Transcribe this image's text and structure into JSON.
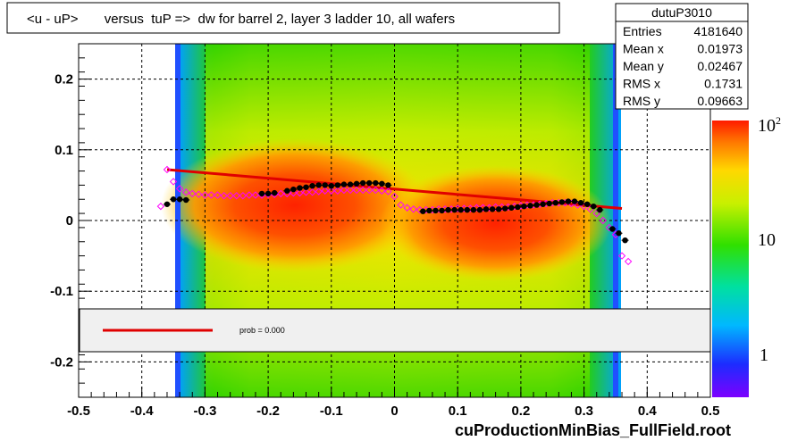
{
  "chart_data": {
    "type": "heatmap",
    "title": "<u - uP>       versus  tuP =>  dw for barrel 2, layer 3 ladder 10, all wafers",
    "xlabel": "cuProductionMinBias_FullField.root",
    "ylabel": "",
    "xlim": [
      -0.5,
      0.5
    ],
    "ylim": [
      -0.25,
      0.25
    ],
    "x_ticks": [
      "-0.5",
      "-0.4",
      "-0.3",
      "-0.2",
      "-0.1",
      "0",
      "0.1",
      "0.2",
      "0.3",
      "0.4",
      "0.5"
    ],
    "y_ticks": [
      "-0.2",
      "-0.1",
      "0",
      "0.1",
      "0.2"
    ],
    "grid": true,
    "z_scale": "log",
    "z_ticks": [
      "1",
      "10",
      "10^2"
    ],
    "colors": {
      "fit_line": "#e00000",
      "profile_points": "#000000",
      "profile_alt": "#ff00ff",
      "legend_box_bg": "#f0f0f0"
    },
    "stats": {
      "name": "dutuP3010",
      "rows": [
        {
          "label": "Entries",
          "value": "4181640"
        },
        {
          "label": "Mean x",
          "value": "0.01973"
        },
        {
          "label": "Mean y",
          "value": "0.02467"
        },
        {
          "label": "RMS x",
          "value": "0.1731"
        },
        {
          "label": "RMS y",
          "value": "0.09663"
        }
      ]
    },
    "legend": {
      "text": "prob = 0.000"
    },
    "fit_line": {
      "x": [
        -0.36,
        0.36
      ],
      "y": [
        0.072,
        0.017
      ]
    },
    "profile_black": {
      "x": [
        -0.36,
        -0.35,
        -0.34,
        -0.33,
        -0.21,
        -0.2,
        -0.19,
        -0.17,
        -0.16,
        -0.15,
        -0.14,
        -0.13,
        -0.12,
        -0.11,
        -0.1,
        -0.09,
        -0.08,
        -0.07,
        -0.06,
        -0.05,
        -0.04,
        -0.03,
        -0.02,
        -0.01,
        0.045,
        0.055,
        0.065,
        0.075,
        0.085,
        0.095,
        0.105,
        0.115,
        0.125,
        0.135,
        0.145,
        0.155,
        0.165,
        0.175,
        0.185,
        0.195,
        0.205,
        0.215,
        0.225,
        0.235,
        0.245,
        0.255,
        0.265,
        0.275,
        0.285,
        0.295,
        0.305,
        0.315,
        0.325,
        0.345,
        0.355,
        0.365
      ],
      "y": [
        0.023,
        0.03,
        0.03,
        0.029,
        0.038,
        0.038,
        0.039,
        0.042,
        0.044,
        0.046,
        0.047,
        0.049,
        0.05,
        0.05,
        0.049,
        0.05,
        0.051,
        0.051,
        0.052,
        0.053,
        0.053,
        0.053,
        0.052,
        0.05,
        0.013,
        0.014,
        0.014,
        0.014,
        0.015,
        0.015,
        0.015,
        0.015,
        0.015,
        0.015,
        0.016,
        0.016,
        0.016,
        0.017,
        0.018,
        0.019,
        0.02,
        0.021,
        0.022,
        0.023,
        0.024,
        0.025,
        0.026,
        0.027,
        0.027,
        0.025,
        0.023,
        0.02,
        0.015,
        -0.012,
        -0.018,
        -0.028
      ]
    },
    "profile_magenta": {
      "x": [
        -0.37,
        -0.36,
        -0.35,
        -0.34,
        -0.33,
        -0.32,
        -0.31,
        -0.3,
        -0.29,
        -0.28,
        -0.27,
        -0.26,
        -0.25,
        -0.24,
        -0.23,
        -0.22,
        -0.21,
        -0.2,
        -0.19,
        -0.18,
        -0.17,
        -0.16,
        -0.15,
        -0.14,
        -0.13,
        -0.12,
        -0.11,
        -0.1,
        -0.09,
        -0.08,
        -0.07,
        -0.06,
        -0.05,
        -0.04,
        -0.03,
        -0.02,
        -0.01,
        0.0,
        0.01,
        0.02,
        0.03,
        0.04,
        0.05,
        0.06,
        0.07,
        0.08,
        0.09,
        0.1,
        0.11,
        0.12,
        0.13,
        0.14,
        0.15,
        0.16,
        0.17,
        0.18,
        0.19,
        0.2,
        0.21,
        0.22,
        0.23,
        0.24,
        0.25,
        0.26,
        0.27,
        0.28,
        0.29,
        0.3,
        0.31,
        0.32,
        0.33,
        0.34,
        0.35,
        0.36,
        0.37
      ],
      "y": [
        0.02,
        0.072,
        0.055,
        0.045,
        0.04,
        0.038,
        0.037,
        0.036,
        0.036,
        0.036,
        0.035,
        0.035,
        0.035,
        0.035,
        0.036,
        0.036,
        0.036,
        0.037,
        0.037,
        0.038,
        0.038,
        0.039,
        0.039,
        0.04,
        0.04,
        0.041,
        0.042,
        0.042,
        0.042,
        0.043,
        0.043,
        0.043,
        0.043,
        0.043,
        0.043,
        0.042,
        0.041,
        0.034,
        0.022,
        0.018,
        0.016,
        0.015,
        0.015,
        0.015,
        0.016,
        0.016,
        0.016,
        0.017,
        0.017,
        0.017,
        0.018,
        0.018,
        0.018,
        0.019,
        0.019,
        0.019,
        0.02,
        0.021,
        0.022,
        0.022,
        0.023,
        0.024,
        0.025,
        0.025,
        0.025,
        0.024,
        0.022,
        0.02,
        0.016,
        0.01,
        0.0,
        -0.01,
        -0.02,
        -0.05,
        -0.058
      ]
    }
  }
}
